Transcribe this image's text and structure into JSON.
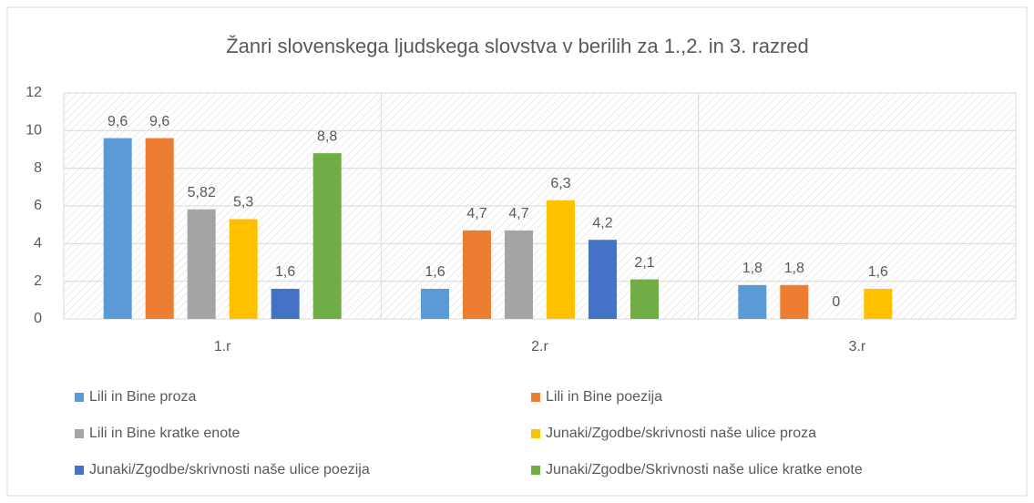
{
  "chart_data": {
    "type": "bar",
    "title": "Žanri slovenskega ljudskega slovstva v berilih za 1.,2. in 3. razred",
    "categories": [
      "1.r",
      "2.r",
      "3.r"
    ],
    "series": [
      {
        "name": "Lili in Bine proza",
        "color": "#5b9bd5",
        "values": [
          9.6,
          1.6,
          1.8
        ],
        "value_labels": [
          "9,6",
          "1,6",
          "1,8"
        ]
      },
      {
        "name": "Lili in Bine poezija",
        "color": "#ed7d31",
        "values": [
          9.6,
          4.7,
          1.8
        ],
        "value_labels": [
          "9,6",
          "4,7",
          "1,8"
        ]
      },
      {
        "name": "Lili in Bine kratke enote",
        "color": "#a5a5a5",
        "values": [
          5.82,
          4.7,
          0
        ],
        "value_labels": [
          "5,82",
          "4,7",
          "0"
        ]
      },
      {
        "name": "Junaki/Zgodbe/skrivnosti naše ulice proza",
        "color": "#ffc000",
        "values": [
          5.3,
          6.3,
          1.6
        ],
        "value_labels": [
          "5,3",
          "6,3",
          "1,6"
        ]
      },
      {
        "name": "Junaki/Zgodbe/skrivnosti naše ulice poezija",
        "color": "#4472c4",
        "values": [
          1.6,
          4.2,
          null
        ],
        "value_labels": [
          "1,6",
          "4,2",
          null
        ]
      },
      {
        "name": "Junaki/Zgodbe/Skrivnosti naše ulice kratke enote",
        "color": "#70ad47",
        "values": [
          8.8,
          2.1,
          null
        ],
        "value_labels": [
          "8,8",
          "2,1",
          null
        ]
      }
    ],
    "ylim": [
      0,
      12
    ],
    "yticks": [
      0,
      2,
      4,
      6,
      8,
      10,
      12
    ],
    "grid": true,
    "legend": "bottom"
  }
}
